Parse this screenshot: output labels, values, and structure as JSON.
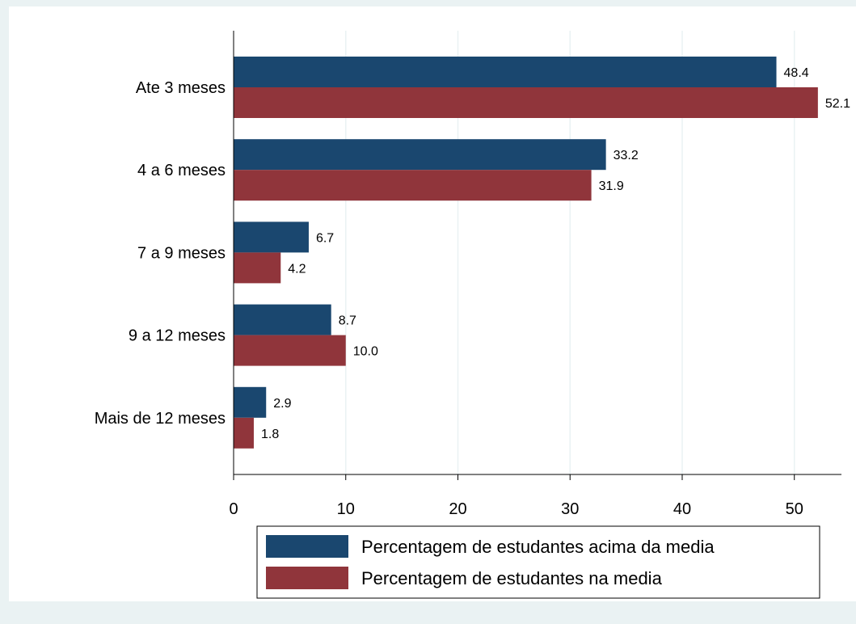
{
  "chart_data": {
    "type": "bar",
    "orientation": "horizontal",
    "categories": [
      "Ate 3 meses",
      "4 a 6 meses",
      "7 a 9 meses",
      "9 a 12 meses",
      "Mais de 12 meses"
    ],
    "series": [
      {
        "name": "Percentagem de estudantes acima da media",
        "color": "#1a476f",
        "values": [
          48.4,
          33.2,
          6.7,
          8.7,
          2.9
        ],
        "labels": [
          "48.4",
          "33.2",
          "6.7",
          "8.7",
          "2.9"
        ]
      },
      {
        "name": "Percentagem de estudantes na media",
        "color": "#90353b",
        "values": [
          52.1,
          31.9,
          4.2,
          10.0,
          1.8
        ],
        "labels": [
          "52.1",
          "31.9",
          "4.2",
          "10.0",
          "1.8"
        ]
      }
    ],
    "xticks": [
      0,
      10,
      20,
      30,
      40,
      50
    ],
    "xlim": [
      0,
      54.2
    ],
    "title": "",
    "xlabel": "",
    "ylabel": "",
    "grid": true,
    "legend_position": "bottom",
    "colors": {
      "outer_background": "#eaf2f3",
      "plot_background": "#ffffff",
      "gridline": "#eaf2f3"
    }
  }
}
